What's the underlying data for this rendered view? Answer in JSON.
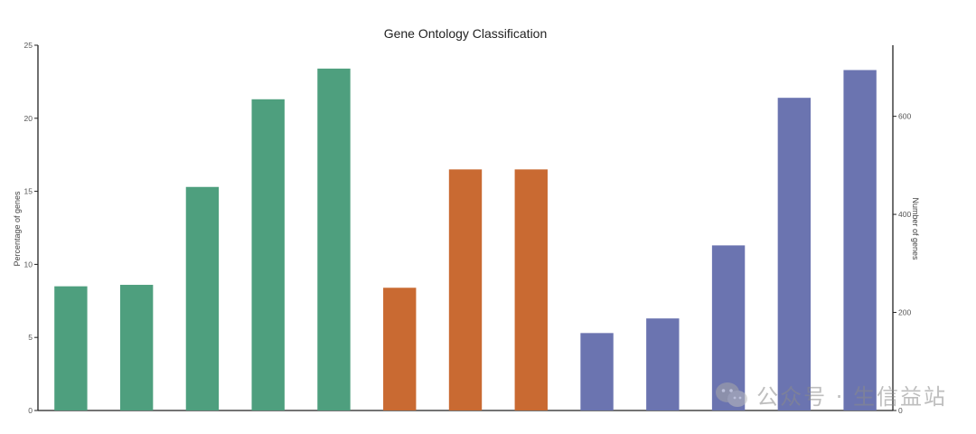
{
  "chart_data": {
    "type": "bar",
    "title": "Gene Ontology Classification",
    "ylabel_left": "Percentage of genes",
    "ylabel_right": "Number of genes",
    "ylim_left": [
      0,
      25
    ],
    "yticks_left": [
      0,
      5,
      10,
      15,
      20,
      25
    ],
    "ylim_right": [
      0,
      745
    ],
    "yticks_right": [
      0,
      200,
      400,
      600
    ],
    "grid": false,
    "series": [
      {
        "color": "#4e9f7e",
        "values": [
          8.5,
          8.6,
          15.3,
          21.3,
          23.4
        ]
      },
      {
        "color": "#c96a32",
        "values": [
          8.4,
          16.5,
          16.5
        ]
      },
      {
        "color": "#6b74b0",
        "values": [
          5.3,
          6.3,
          11.3,
          21.4,
          23.3
        ]
      }
    ]
  },
  "watermark": {
    "text": "公众号 · 生信益站",
    "icon": "wechat-icon"
  }
}
